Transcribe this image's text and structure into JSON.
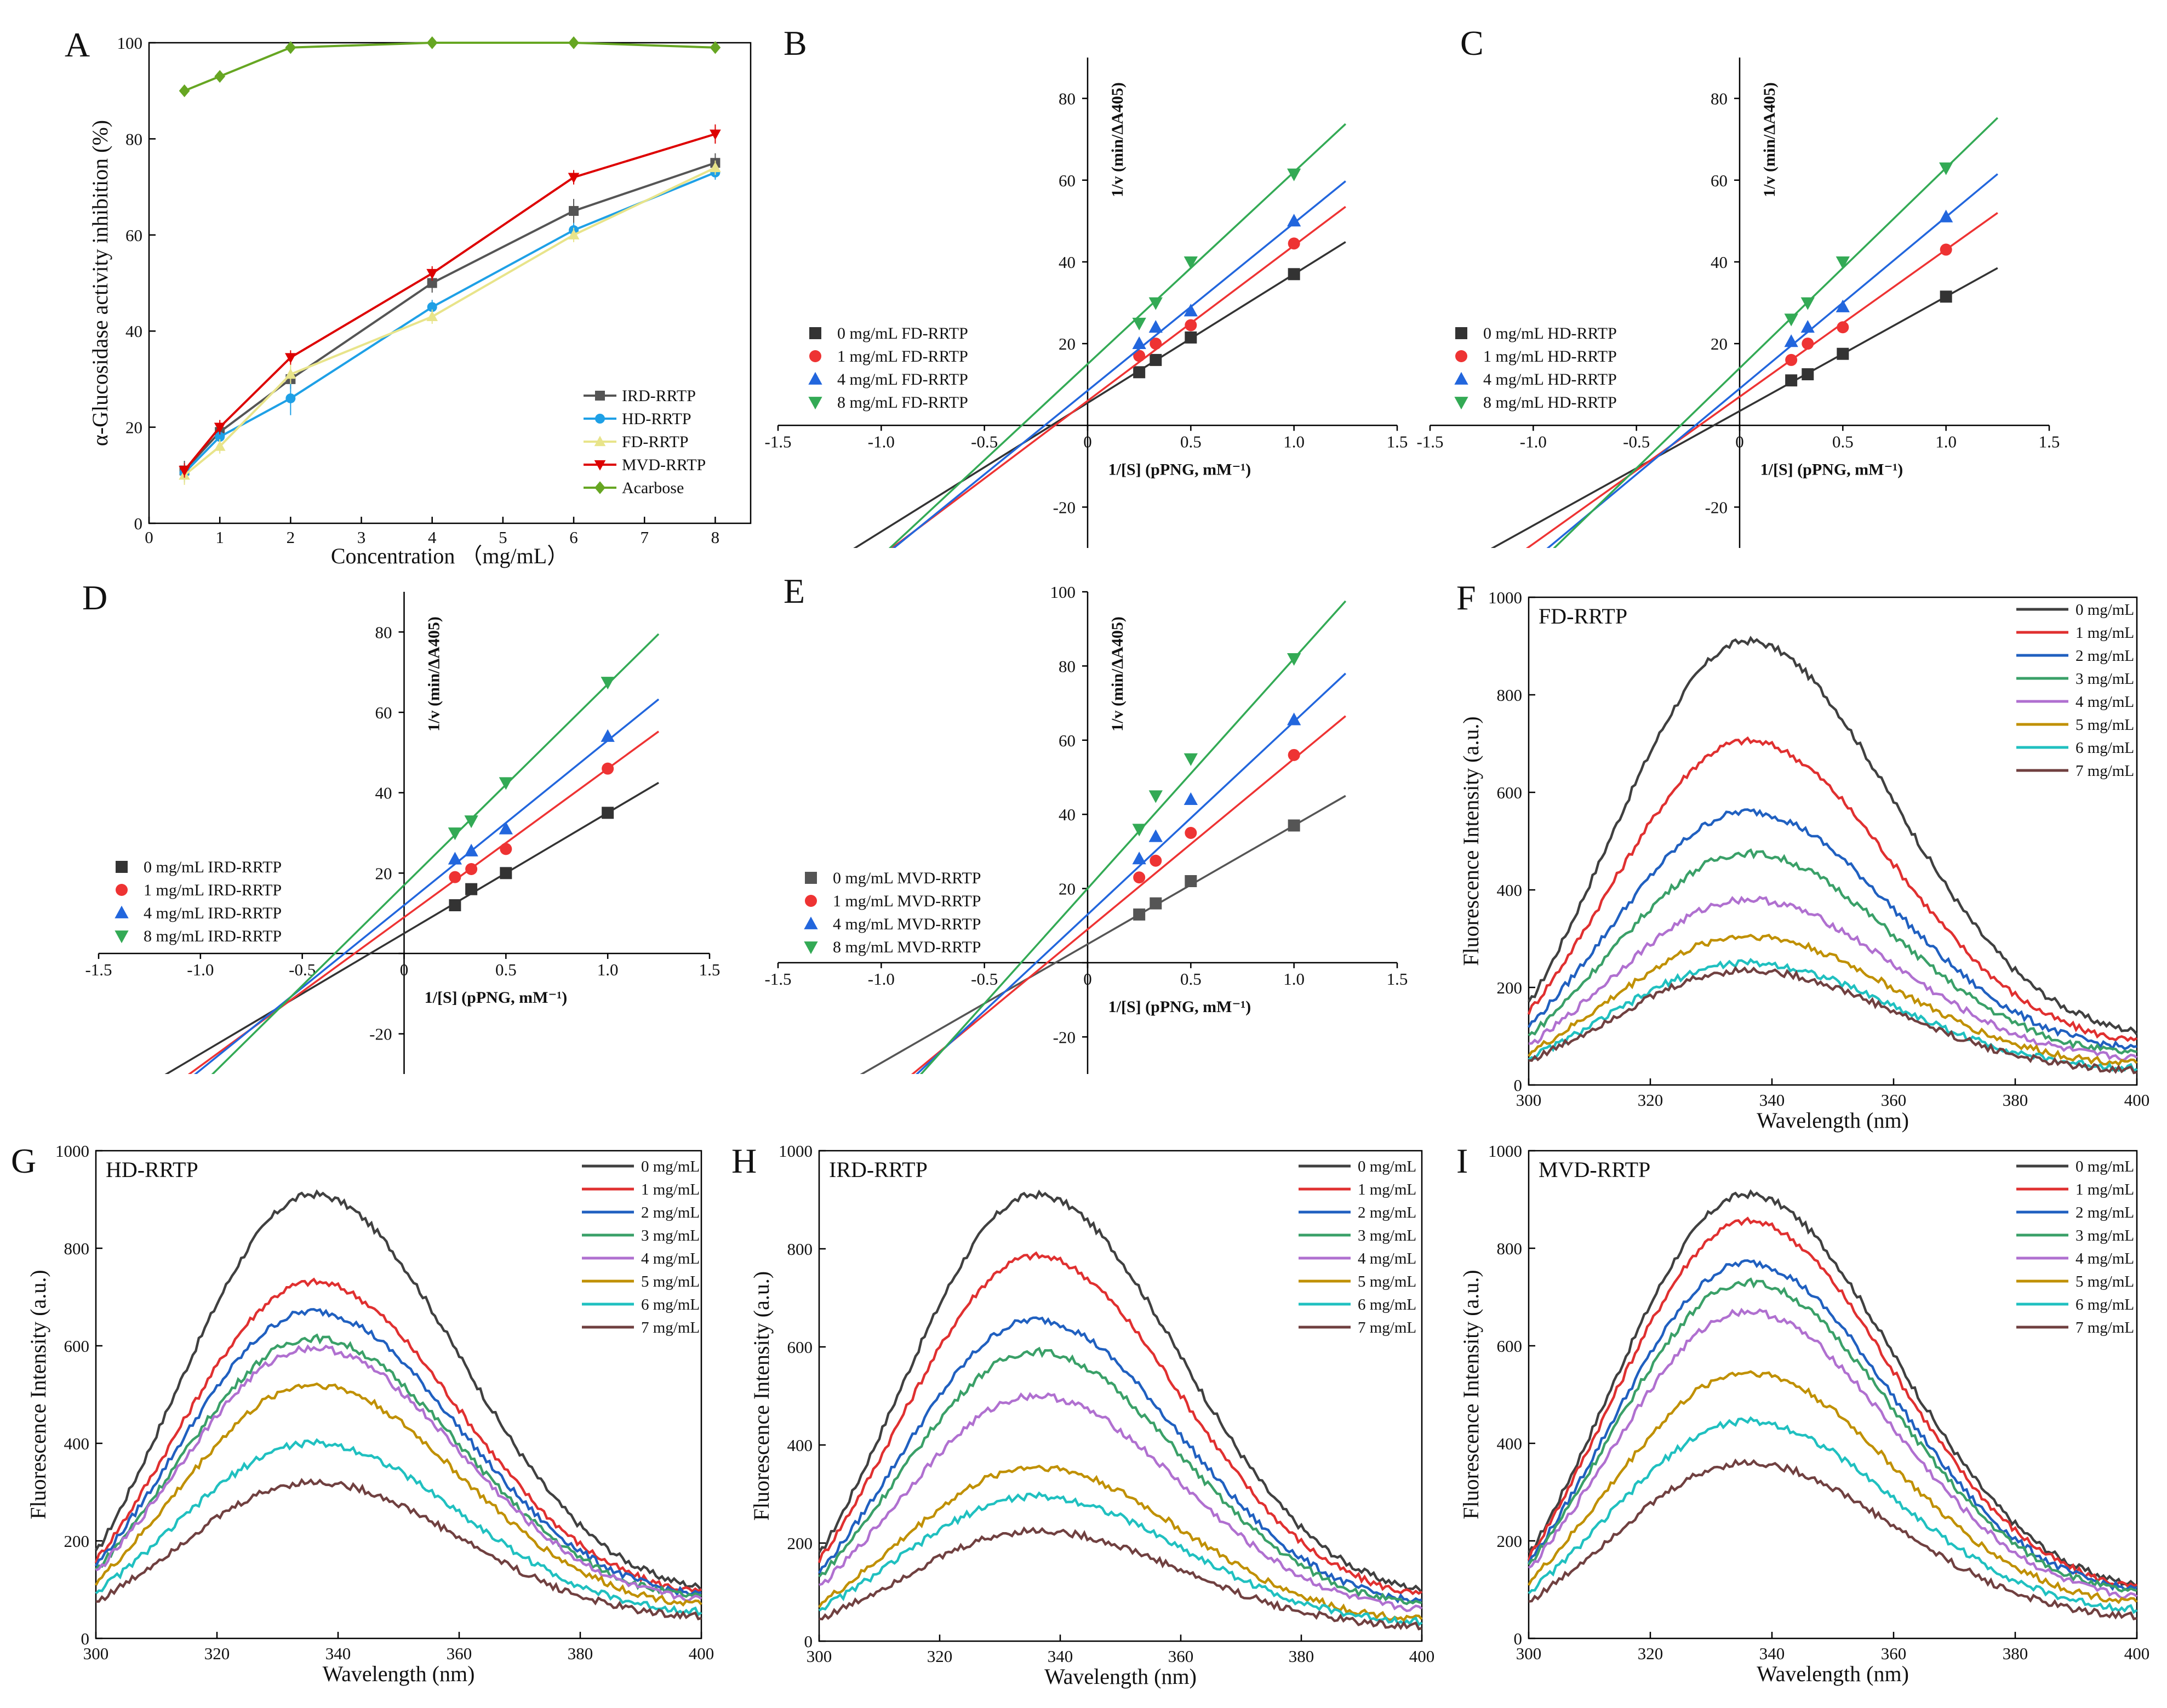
{
  "figure": {
    "A": {
      "letter": "A",
      "chart_data": {
        "type": "line",
        "xlabel": "Concentration （mg/mL）",
        "ylabel": "α-Glucosidase activity inhibition (%)",
        "xlim": [
          0,
          8.5
        ],
        "ylim": [
          0,
          100
        ],
        "xticks": [
          "0",
          "1",
          "2",
          "3",
          "4",
          "5",
          "6",
          "7",
          "8"
        ],
        "yticks": [
          "0",
          "20",
          "40",
          "60",
          "80",
          "100"
        ],
        "x": [
          0.5,
          1,
          2,
          4,
          6,
          8
        ],
        "series": [
          {
            "name": "IRD-RRTP",
            "color": "#555555",
            "marker": "square",
            "values": [
              11,
              19,
              30,
              50,
              65,
              75
            ],
            "err": [
              2,
              2,
              2,
              2,
              2.5,
              2
            ]
          },
          {
            "name": "HD-RRTP",
            "color": "#1ea0e6",
            "marker": "circle",
            "values": [
              10.5,
              18,
              26,
              45,
              61,
              73
            ],
            "err": [
              2,
              1.5,
              3.5,
              1.5,
              1.5,
              1.5
            ]
          },
          {
            "name": "FD-RRTP",
            "color": "#e8e48a",
            "marker": "triangle-up",
            "values": [
              10,
              16,
              31,
              43,
              60,
              74
            ],
            "err": [
              2,
              1.5,
              2,
              1.5,
              1.5,
              1.5
            ]
          },
          {
            "name": "MVD-RRTP",
            "color": "#dd0000",
            "marker": "triangle-down",
            "values": [
              11,
              20,
              34.5,
              52,
              72,
              81
            ],
            "err": [
              1.5,
              1.5,
              1.5,
              1.5,
              1.5,
              2
            ]
          },
          {
            "name": "Acarbose",
            "color": "#66a622",
            "marker": "diamond",
            "values": [
              90,
              93,
              99,
              100,
              100,
              99
            ],
            "err": [
              0,
              0,
              0,
              0,
              0,
              0
            ]
          }
        ]
      }
    },
    "B": {
      "letter": "B",
      "chart_data": {
        "type": "scatter",
        "xlabel": "1/[S] (pPNG, mM⁻¹)",
        "ylabel": "1/v (min/ΔA405)",
        "xlim": [
          -1.5,
          1.5
        ],
        "ylim": [
          -30,
          90
        ],
        "xticks": [
          "-1.5",
          "-1.0",
          "-0.5",
          "0",
          "0.5",
          "1.0",
          "1.5"
        ],
        "yticks": [
          "-20",
          "0",
          "20",
          "40",
          "60",
          "80"
        ],
        "x": [
          0.25,
          0.33,
          0.5,
          1.0
        ],
        "series": [
          {
            "name": "0 mg/mL FD-RRTP",
            "color": "#333333",
            "marker": "square",
            "values": [
              13,
              16,
              21.5,
              37
            ],
            "slope": 31.5,
            "intercept": 5.5
          },
          {
            "name": "1 mg/mL FD-RRTP",
            "color": "#ee3333",
            "marker": "circle",
            "values": [
              17,
              20,
              24.5,
              44.5
            ],
            "slope": 38,
            "intercept": 6
          },
          {
            "name": "4 mg/mL FD-RRTP",
            "color": "#2266dd",
            "marker": "triangle-up",
            "values": [
              20,
              24,
              28,
              50
            ],
            "slope": 41,
            "intercept": 8.5
          },
          {
            "name": "8 mg/mL FD-RRTP",
            "color": "#33aa55",
            "marker": "triangle-down",
            "values": [
              25,
              30,
              40,
              61.5
            ],
            "slope": 47,
            "intercept": 15
          }
        ]
      }
    },
    "C": {
      "letter": "C",
      "chart_data": {
        "type": "scatter",
        "xlabel": "1/[S] (pPNG, mM⁻¹)",
        "ylabel": "1/v (min/ΔA405)",
        "xlim": [
          -1.5,
          1.5
        ],
        "ylim": [
          -30,
          90
        ],
        "xticks": [
          "-1.5",
          "-1.0",
          "-0.5",
          "0",
          "0.5",
          "1.0",
          "1.5"
        ],
        "yticks": [
          "-20",
          "0",
          "20",
          "40",
          "60",
          "80"
        ],
        "x": [
          0.25,
          0.33,
          0.5,
          1.0
        ],
        "series": [
          {
            "name": "0 mg/mL HD-RRTP",
            "color": "#333333",
            "marker": "square",
            "values": [
              11,
              12.5,
              17.5,
              31.5
            ],
            "slope": 28,
            "intercept": 3.5
          },
          {
            "name": "1 mg/mL HD-RRTP",
            "color": "#ee3333",
            "marker": "circle",
            "values": [
              16,
              20,
              24,
              43
            ],
            "slope": 36,
            "intercept": 7
          },
          {
            "name": "4 mg/mL HD-RRTP",
            "color": "#2266dd",
            "marker": "triangle-up",
            "values": [
              20.5,
              24,
              29,
              51
            ],
            "slope": 42,
            "intercept": 9
          },
          {
            "name": "8 mg/mL HD-RRTP",
            "color": "#33aa55",
            "marker": "triangle-down",
            "values": [
              26,
              30,
              40,
              63
            ],
            "slope": 49,
            "intercept": 14
          }
        ]
      }
    },
    "D": {
      "letter": "D",
      "chart_data": {
        "type": "scatter",
        "xlabel": "1/[S] (pPNG, mM⁻¹)",
        "ylabel": "1/v (min/ΔA405)",
        "xlim": [
          -1.5,
          1.5
        ],
        "ylim": [
          -30,
          90
        ],
        "xticks": [
          "-1.5",
          "-1.0",
          "-0.5",
          "0",
          "0.5",
          "1.0",
          "1.5"
        ],
        "yticks": [
          "-20",
          "0",
          "20",
          "40",
          "60",
          "80"
        ],
        "x": [
          0.25,
          0.33,
          0.5,
          1.0
        ],
        "series": [
          {
            "name": "0 mg/mL IRD-RRTP",
            "color": "#333333",
            "marker": "square",
            "values": [
              12,
              16,
              20,
              35
            ],
            "slope": 30,
            "intercept": 5
          },
          {
            "name": "1 mg/mL IRD-RRTP",
            "color": "#ee3333",
            "marker": "circle",
            "values": [
              19,
              21,
              26,
              46
            ],
            "slope": 37,
            "intercept": 9
          },
          {
            "name": "4 mg/mL IRD-RRTP",
            "color": "#2266dd",
            "marker": "triangle-up",
            "values": [
              23.5,
              25.5,
              31,
              54
            ],
            "slope": 41,
            "intercept": 12
          },
          {
            "name": "8 mg/mL IRD-RRTP",
            "color": "#33aa55",
            "marker": "triangle-down",
            "values": [
              30,
              33,
              42.5,
              67.5
            ],
            "slope": 50,
            "intercept": 17
          }
        ]
      }
    },
    "E": {
      "letter": "E",
      "chart_data": {
        "type": "scatter",
        "xlabel": "1/[S] (pPNG, mM⁻¹)",
        "ylabel": "1/v (min/ΔA405)",
        "xlim": [
          -1.5,
          1.5
        ],
        "ylim": [
          -30,
          100
        ],
        "xticks": [
          "-1.5",
          "-1.0",
          "-0.5",
          "0",
          "0.5",
          "1.0",
          "1.5"
        ],
        "yticks": [
          "-20",
          "0",
          "20",
          "40",
          "60",
          "80",
          "100"
        ],
        "x": [
          0.25,
          0.33,
          0.5,
          1.0
        ],
        "series": [
          {
            "name": "0 mg/mL MVD-RRTP",
            "color": "#555555",
            "marker": "square",
            "values": [
              13,
              16,
              22,
              37
            ],
            "slope": 32,
            "intercept": 5
          },
          {
            "name": "1 mg/mL MVD-RRTP",
            "color": "#ee3333",
            "marker": "circle",
            "values": [
              23,
              27.5,
              35,
              56
            ],
            "slope": 46,
            "intercept": 9
          },
          {
            "name": "4 mg/mL MVD-RRTP",
            "color": "#2266dd",
            "marker": "triangle-up",
            "values": [
              28,
              34,
              44,
              65.5
            ],
            "slope": 52,
            "intercept": 13
          },
          {
            "name": "8 mg/mL MVD-RRTP",
            "color": "#33aa55",
            "marker": "triangle-down",
            "values": [
              36,
              45,
              55,
              82
            ],
            "slope": 62,
            "intercept": 20
          }
        ]
      }
    },
    "F": {
      "letter": "F",
      "chart_data": {
        "type": "line",
        "title": "FD-RRTP",
        "xlabel": "Wavelength (nm)",
        "ylabel": "Fluorescence Intensity (a.u.)",
        "xlim": [
          300,
          400
        ],
        "ylim": [
          0,
          1000
        ],
        "xticks": [
          "300",
          "320",
          "340",
          "360",
          "380",
          "400"
        ],
        "yticks": [
          "0",
          "200",
          "400",
          "600",
          "800",
          "1000"
        ],
        "peak_nm": 335,
        "series": [
          {
            "name": "0 mg/mL",
            "color": "#404040",
            "start": 165,
            "peak": 910,
            "end": 110
          },
          {
            "name": "1 mg/mL",
            "color": "#e03030",
            "start": 150,
            "peak": 705,
            "end": 90
          },
          {
            "name": "2 mg/mL",
            "color": "#2060c0",
            "start": 120,
            "peak": 560,
            "end": 75
          },
          {
            "name": "3 mg/mL",
            "color": "#3aa068",
            "start": 100,
            "peak": 475,
            "end": 65
          },
          {
            "name": "4 mg/mL",
            "color": "#b070d0",
            "start": 80,
            "peak": 380,
            "end": 55
          },
          {
            "name": "5 mg/mL",
            "color": "#c09000",
            "start": 65,
            "peak": 305,
            "end": 45
          },
          {
            "name": "6 mg/mL",
            "color": "#20c0c0",
            "start": 55,
            "peak": 250,
            "end": 35
          },
          {
            "name": "7 mg/mL",
            "color": "#704040",
            "start": 50,
            "peak": 235,
            "end": 30
          }
        ]
      }
    },
    "G": {
      "letter": "G",
      "chart_data": {
        "type": "line",
        "title": "HD-RRTP",
        "xlabel": "Wavelength (nm)",
        "ylabel": "Fluorescence Intensity (a.u.)",
        "xlim": [
          300,
          400
        ],
        "ylim": [
          0,
          1000
        ],
        "xticks": [
          "300",
          "320",
          "340",
          "360",
          "380",
          "400"
        ],
        "yticks": [
          "0",
          "200",
          "400",
          "600",
          "800",
          "1000"
        ],
        "peak_nm": 335,
        "series": [
          {
            "name": "0 mg/mL",
            "color": "#404040",
            "start": 175,
            "peak": 910,
            "end": 105
          },
          {
            "name": "1 mg/mL",
            "color": "#e03030",
            "start": 160,
            "peak": 730,
            "end": 95
          },
          {
            "name": "2 mg/mL",
            "color": "#2060c0",
            "start": 150,
            "peak": 670,
            "end": 90
          },
          {
            "name": "3 mg/mL",
            "color": "#3aa068",
            "start": 140,
            "peak": 615,
            "end": 85
          },
          {
            "name": "4 mg/mL",
            "color": "#b070d0",
            "start": 135,
            "peak": 595,
            "end": 80
          },
          {
            "name": "5 mg/mL",
            "color": "#c09000",
            "start": 115,
            "peak": 520,
            "end": 70
          },
          {
            "name": "6 mg/mL",
            "color": "#20c0c0",
            "start": 95,
            "peak": 400,
            "end": 55
          },
          {
            "name": "7 mg/mL",
            "color": "#704040",
            "start": 75,
            "peak": 320,
            "end": 45
          }
        ]
      }
    },
    "H": {
      "letter": "H",
      "chart_data": {
        "type": "line",
        "title": "IRD-RRTP",
        "xlabel": "Wavelength (nm)",
        "ylabel": "Fluorescence Intensity (a.u.)",
        "xlim": [
          300,
          400
        ],
        "ylim": [
          0,
          1000
        ],
        "xticks": [
          "300",
          "320",
          "340",
          "360",
          "380",
          "400"
        ],
        "yticks": [
          "0",
          "200",
          "400",
          "600",
          "800",
          "1000"
        ],
        "peak_nm": 335,
        "series": [
          {
            "name": "0 mg/mL",
            "color": "#404040",
            "start": 175,
            "peak": 910,
            "end": 105
          },
          {
            "name": "1 mg/mL",
            "color": "#e03030",
            "start": 165,
            "peak": 785,
            "end": 95
          },
          {
            "name": "2 mg/mL",
            "color": "#2060c0",
            "start": 140,
            "peak": 655,
            "end": 80
          },
          {
            "name": "3 mg/mL",
            "color": "#3aa068",
            "start": 130,
            "peak": 590,
            "end": 75
          },
          {
            "name": "4 mg/mL",
            "color": "#b070d0",
            "start": 110,
            "peak": 500,
            "end": 65
          },
          {
            "name": "5 mg/mL",
            "color": "#c09000",
            "start": 75,
            "peak": 355,
            "end": 45
          },
          {
            "name": "6 mg/mL",
            "color": "#20c0c0",
            "start": 65,
            "peak": 295,
            "end": 40
          },
          {
            "name": "7 mg/mL",
            "color": "#704040",
            "start": 45,
            "peak": 225,
            "end": 30
          }
        ]
      }
    },
    "I": {
      "letter": "I",
      "chart_data": {
        "type": "line",
        "title": "MVD-RRTP",
        "xlabel": "Wavelength (nm)",
        "ylabel": "Fluorescence Intensity (a.u.)",
        "xlim": [
          300,
          400
        ],
        "ylim": [
          0,
          1000
        ],
        "xticks": [
          "300",
          "320",
          "340",
          "360",
          "380",
          "400"
        ],
        "yticks": [
          "0",
          "200",
          "400",
          "600",
          "800",
          "1000"
        ],
        "peak_nm": 335,
        "series": [
          {
            "name": "0 mg/mL",
            "color": "#404040",
            "start": 170,
            "peak": 910,
            "end": 110
          },
          {
            "name": "1 mg/mL",
            "color": "#e03030",
            "start": 165,
            "peak": 855,
            "end": 105
          },
          {
            "name": "2 mg/mL",
            "color": "#2060c0",
            "start": 155,
            "peak": 770,
            "end": 100
          },
          {
            "name": "3 mg/mL",
            "color": "#3aa068",
            "start": 150,
            "peak": 730,
            "end": 95
          },
          {
            "name": "4 mg/mL",
            "color": "#b070d0",
            "start": 140,
            "peak": 670,
            "end": 85
          },
          {
            "name": "5 mg/mL",
            "color": "#c09000",
            "start": 115,
            "peak": 545,
            "end": 75
          },
          {
            "name": "6 mg/mL",
            "color": "#20c0c0",
            "start": 95,
            "peak": 445,
            "end": 60
          },
          {
            "name": "7 mg/mL",
            "color": "#704040",
            "start": 75,
            "peak": 360,
            "end": 45
          }
        ]
      }
    }
  }
}
